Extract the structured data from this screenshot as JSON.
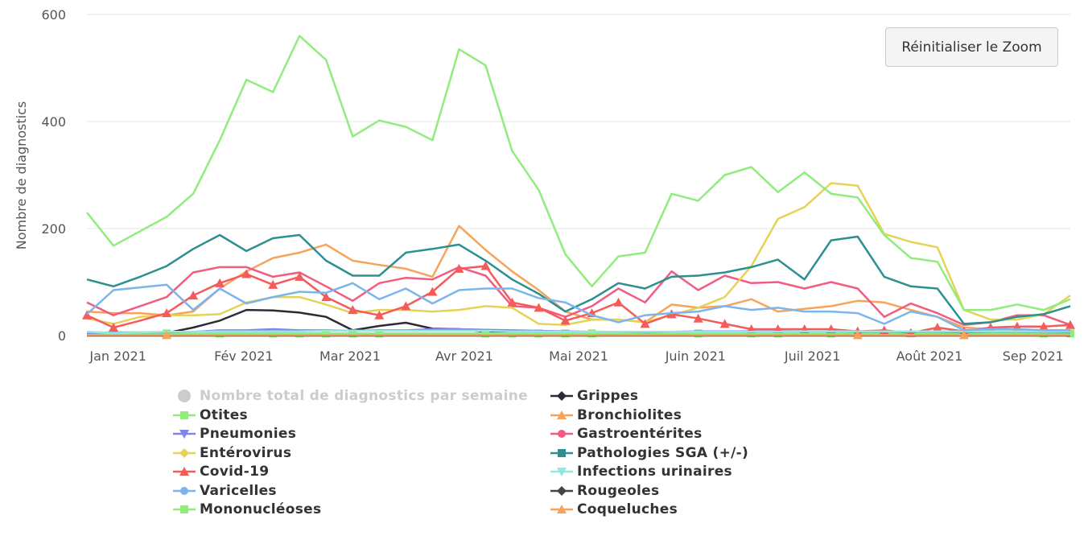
{
  "reset_button_label": "Réinitialiser le Zoom",
  "chart_data": {
    "type": "line",
    "ylabel": "Nombre de diagnostics",
    "ylim": [
      0,
      600
    ],
    "yticks": [
      0,
      200,
      400,
      600
    ],
    "x_tick_labels": [
      "Jan 2021",
      "Fév 2021",
      "Mar 2021",
      "Avr 2021",
      "Mai 2021",
      "Juin 2021",
      "Juil 2021",
      "Août 2021",
      "Sep 2021"
    ],
    "x_tick_week_positions": [
      1.17,
      5.9,
      9.9,
      14.2,
      18.5,
      22.9,
      27.3,
      31.7,
      35.6
    ],
    "series": [
      {
        "name": "Nombre total de diagnostics par semaine",
        "color": "#cccccc",
        "marker": "circle",
        "hidden": true,
        "values": []
      },
      {
        "name": "Grippes",
        "color": "#2b2b36",
        "marker": "diamond",
        "values": [
          2,
          3,
          3,
          5,
          15,
          28,
          48,
          47,
          43,
          35,
          10,
          18,
          24,
          13,
          12,
          7,
          6,
          4,
          3,
          3,
          3,
          2,
          3,
          3,
          3,
          3,
          4,
          4,
          3,
          3,
          3,
          3,
          3,
          3,
          3,
          3,
          3,
          3
        ]
      },
      {
        "name": "Otites",
        "color": "#90ed7d",
        "marker": "square",
        "values": [
          4,
          4,
          4,
          4,
          4,
          4,
          4,
          4,
          4,
          4,
          4,
          4,
          4,
          4,
          4,
          4,
          4,
          4,
          4,
          4,
          4,
          4,
          4,
          4,
          4,
          4,
          4,
          4,
          4,
          4,
          4,
          4,
          4,
          4,
          4,
          4,
          4,
          4
        ]
      },
      {
        "name": "Bronchiolites",
        "color": "#f7a35c",
        "marker": "triangle",
        "values": [
          45,
          42,
          42,
          38,
          45,
          88,
          120,
          145,
          155,
          170,
          140,
          132,
          125,
          110,
          205,
          160,
          120,
          85,
          45,
          30,
          30,
          25,
          58,
          52,
          55,
          68,
          45,
          50,
          55,
          65,
          62,
          48,
          35,
          15,
          12,
          12,
          10,
          10
        ]
      },
      {
        "name": "Pneumonies",
        "color": "#8085e9",
        "marker": "triangle-down",
        "values": [
          5,
          6,
          6,
          6,
          7,
          10,
          10,
          12,
          10,
          10,
          9,
          10,
          10,
          12,
          12,
          11,
          10,
          9,
          8,
          7,
          7,
          6,
          7,
          8,
          8,
          8,
          8,
          8,
          8,
          7,
          7,
          7,
          7,
          6,
          7,
          7,
          6,
          6
        ]
      },
      {
        "name": "Gastroentérites",
        "color": "#f15c80",
        "marker": "circle",
        "values": [
          62,
          38,
          55,
          72,
          118,
          128,
          128,
          110,
          118,
          92,
          65,
          98,
          108,
          105,
          128,
          112,
          55,
          52,
          35,
          55,
          88,
          62,
          120,
          85,
          112,
          98,
          100,
          88,
          100,
          88,
          35,
          60,
          42,
          20,
          25,
          38,
          38,
          20
        ]
      },
      {
        "name": "Entérovirus",
        "color": "#e4d354",
        "marker": "diamond",
        "values": [
          32,
          22,
          35,
          38,
          38,
          40,
          62,
          72,
          72,
          58,
          42,
          48,
          48,
          45,
          48,
          55,
          52,
          22,
          20,
          30,
          30,
          25,
          38,
          52,
          72,
          130,
          218,
          240,
          285,
          280,
          190,
          175,
          165,
          48,
          30,
          30,
          40,
          75
        ]
      },
      {
        "name": "Pathologies SGA (+/-)",
        "color": "#2b908f",
        "marker": "square",
        "values": [
          105,
          92,
          110,
          130,
          162,
          188,
          158,
          182,
          188,
          140,
          112,
          112,
          155,
          162,
          170,
          140,
          105,
          78,
          45,
          68,
          98,
          88,
          110,
          112,
          118,
          128,
          142,
          105,
          178,
          185,
          110,
          92,
          88,
          22,
          25,
          35,
          40,
          55
        ]
      },
      {
        "name": "Covid-19",
        "color": "#f45b5b",
        "marker": "triangle",
        "values": [
          38,
          15,
          28,
          42,
          75,
          98,
          115,
          95,
          110,
          72,
          48,
          38,
          55,
          82,
          125,
          130,
          62,
          52,
          28,
          42,
          62,
          22,
          40,
          32,
          22,
          12,
          12,
          12,
          12,
          8,
          10,
          5,
          15,
          8,
          15,
          17,
          17,
          20
        ]
      },
      {
        "name": "Infections urinaires",
        "color": "#91e8e1",
        "marker": "triangle-down",
        "values": [
          7,
          5,
          6,
          7,
          7,
          8,
          8,
          8,
          8,
          9,
          9,
          9,
          9,
          9,
          9,
          9,
          8,
          8,
          7,
          7,
          7,
          7,
          7,
          7,
          7,
          7,
          7,
          8,
          8,
          8,
          8,
          8,
          8,
          8,
          8,
          8,
          7,
          8
        ]
      },
      {
        "name": "Varicelles",
        "color": "#7cb5ec",
        "marker": "circle",
        "values": [
          40,
          85,
          90,
          95,
          48,
          88,
          60,
          72,
          82,
          80,
          98,
          68,
          88,
          60,
          85,
          88,
          88,
          70,
          62,
          38,
          25,
          38,
          42,
          45,
          55,
          48,
          52,
          45,
          45,
          42,
          22,
          45,
          35,
          10,
          12,
          12,
          10,
          10
        ]
      },
      {
        "name": "Rougeoles",
        "color": "#434348",
        "marker": "diamond",
        "values": [
          0,
          0,
          0,
          0,
          0,
          0,
          0,
          0,
          0,
          0,
          0,
          0,
          0,
          0,
          0,
          0,
          0,
          0,
          0,
          0,
          0,
          0,
          0,
          0,
          0,
          0,
          0,
          0,
          0,
          0,
          0,
          0,
          0,
          0,
          0,
          0,
          0,
          0
        ]
      },
      {
        "name": "Mononucléoses",
        "color": "#90ed7d",
        "marker": "square",
        "values": [
          230,
          168,
          195,
          222,
          265,
          365,
          478,
          455,
          560,
          515,
          372,
          402,
          390,
          365,
          535,
          505,
          345,
          272,
          152,
          92,
          148,
          155,
          265,
          252,
          300,
          315,
          268,
          305,
          265,
          258,
          188,
          145,
          138,
          48,
          48,
          58,
          48,
          68
        ]
      },
      {
        "name": "Coqueluches",
        "color": "#f7a35c",
        "marker": "triangle",
        "values": [
          1,
          1,
          1,
          1,
          1,
          1,
          1,
          1,
          1,
          1,
          1,
          1,
          1,
          1,
          1,
          1,
          1,
          1,
          1,
          1,
          1,
          1,
          1,
          1,
          1,
          1,
          1,
          1,
          1,
          1,
          1,
          1,
          1,
          1,
          1,
          1,
          1,
          1
        ]
      }
    ],
    "legend_position": "bottom"
  }
}
